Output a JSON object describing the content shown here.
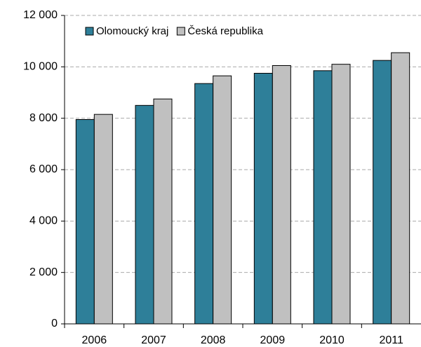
{
  "chart_data": {
    "type": "bar",
    "categories": [
      "2006",
      "2007",
      "2008",
      "2009",
      "2010",
      "2011"
    ],
    "series": [
      {
        "name": "Olomoucký kraj",
        "color": "#2e7f99",
        "values": [
          7950,
          8500,
          9350,
          9750,
          9850,
          10250
        ]
      },
      {
        "name": "Česká republika",
        "color": "#c0c0c0",
        "values": [
          8150,
          8750,
          9650,
          10050,
          10100,
          10550
        ]
      }
    ],
    "ylim": [
      0,
      12000
    ],
    "yticks": [
      0,
      {
        "value": 2000,
        "label": "2 000"
      },
      {
        "value": 4000,
        "label": "4 000"
      },
      {
        "value": 6000,
        "label": "6 000"
      },
      {
        "value": 8000,
        "label": "8 000"
      },
      {
        "value": 10000,
        "label": "10 000"
      },
      {
        "value": 12000,
        "label": "12 000"
      }
    ],
    "grid": true,
    "legend": "top-left"
  }
}
